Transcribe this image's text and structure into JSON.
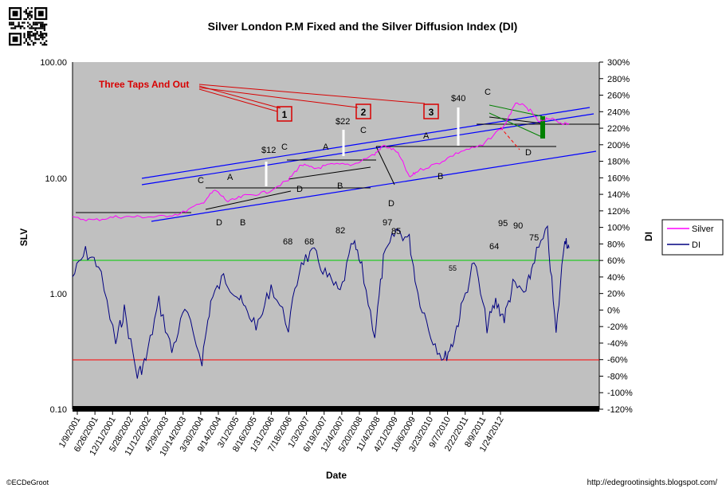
{
  "chart_data": {
    "type": "line",
    "title": "Silver London P.M Fixed and the Silver Diffusion Index (DI)",
    "xlabel": "Date",
    "ylabel_left": "SLV",
    "ylabel_right": "DI",
    "y_left_scale": "log",
    "ylim_left": [
      0.1,
      100
    ],
    "ylim_right": [
      -120,
      300
    ],
    "y_left_ticks": [
      "100.00",
      "10.00",
      "1.00",
      "0.10"
    ],
    "y_right_ticks": [
      "300%",
      "280%",
      "260%",
      "240%",
      "220%",
      "200%",
      "180%",
      "160%",
      "140%",
      "120%",
      "100%",
      "80%",
      "60%",
      "40%",
      "20%",
      "0%",
      "-20%",
      "-40%",
      "-60%",
      "-80%",
      "-100%",
      "-120%"
    ],
    "x_ticks": [
      "1/9/2001",
      "6/26/2001",
      "12/11/2001",
      "5/28/2002",
      "11/12/2002",
      "4/29/2003",
      "10/14/2003",
      "3/30/2004",
      "9/14/2004",
      "3/1/2005",
      "8/16/2005",
      "1/31/2006",
      "7/18/2006",
      "1/3/2007",
      "6/19/2007",
      "12/4/2007",
      "5/20/2008",
      "11/4/2008",
      "4/21/2009",
      "10/6/2009",
      "3/23/2010",
      "9/7/2010",
      "2/22/2011",
      "8/9/2011",
      "1/24/2012"
    ],
    "grid": false,
    "legend_position": "right",
    "series": [
      {
        "name": "Silver",
        "color": "#ff00ff",
        "axis": "left",
        "x": [
          2001.0,
          2001.5,
          2002.0,
          2002.5,
          2003.0,
          2003.5,
          2004.0,
          2004.3,
          2004.6,
          2005.0,
          2005.5,
          2006.0,
          2006.3,
          2006.6,
          2007.0,
          2007.5,
          2008.0,
          2008.2,
          2008.5,
          2008.8,
          2009.0,
          2009.5,
          2010.0,
          2010.5,
          2011.0,
          2011.3,
          2011.6,
          2011.8,
          2012.0,
          2012.3,
          2012.5
        ],
        "values": [
          4.5,
          4.3,
          4.6,
          4.6,
          4.6,
          4.9,
          6.0,
          7.8,
          6.2,
          7.0,
          7.5,
          9.5,
          13.0,
          12.0,
          13.0,
          13.0,
          16.0,
          19.0,
          17.0,
          10.0,
          11.5,
          13.5,
          17.0,
          19.0,
          28.0,
          45.0,
          38.0,
          30.0,
          33.0,
          30.0,
          29.0
        ]
      },
      {
        "name": "DI",
        "color": "#000080",
        "axis": "right",
        "x": [
          2001.0,
          2001.3,
          2001.6,
          2002.0,
          2002.2,
          2002.5,
          2002.7,
          2003.0,
          2003.3,
          2003.6,
          2004.0,
          2004.2,
          2004.5,
          2004.8,
          2005.0,
          2005.3,
          2005.6,
          2006.0,
          2006.3,
          2006.6,
          2006.9,
          2007.2,
          2007.5,
          2007.7,
          2008.0,
          2008.2,
          2008.5,
          2008.8,
          2009.0,
          2009.3,
          2009.6,
          2009.8,
          2010.0,
          2010.3,
          2010.6,
          2010.8,
          2011.0,
          2011.2,
          2011.5,
          2011.7,
          2012.0,
          2012.2,
          2012.4,
          2012.5
        ],
        "values": [
          40,
          70,
          55,
          -40,
          0,
          -80,
          -60,
          10,
          -50,
          0,
          -60,
          10,
          40,
          20,
          0,
          -20,
          30,
          -20,
          60,
          68,
          40,
          20,
          82,
          50,
          -30,
          60,
          97,
          85,
          20,
          -30,
          -60,
          -40,
          0,
          60,
          -20,
          10,
          -10,
          30,
          20,
          64,
          95,
          -30,
          90,
          75
        ]
      }
    ],
    "reference_lines": [
      {
        "axis": "right",
        "value": 60,
        "color": "#00cc00"
      },
      {
        "axis": "right",
        "value": -60,
        "color": "#ff0000"
      }
    ],
    "annotations": [
      {
        "text": "Three Taps And Out",
        "color": "#d80000"
      },
      {
        "text": "1"
      },
      {
        "text": "2"
      },
      {
        "text": "3"
      },
      {
        "text": "$12"
      },
      {
        "text": "$22"
      },
      {
        "text": "$40"
      },
      {
        "text": "C"
      },
      {
        "text": "C"
      },
      {
        "text": "C"
      },
      {
        "text": "C"
      },
      {
        "text": "A"
      },
      {
        "text": "A"
      },
      {
        "text": "A"
      },
      {
        "text": "D"
      },
      {
        "text": "D"
      },
      {
        "text": "D"
      },
      {
        "text": "D"
      },
      {
        "text": "B"
      },
      {
        "text": "B"
      },
      {
        "text": "B"
      },
      {
        "text": "68"
      },
      {
        "text": "68"
      },
      {
        "text": "82"
      },
      {
        "text": "97"
      },
      {
        "text": "85"
      },
      {
        "text": "55"
      },
      {
        "text": "64"
      },
      {
        "text": "95"
      },
      {
        "text": "90"
      },
      {
        "text": "75"
      }
    ]
  },
  "footer": {
    "left": "©ECDeGroot",
    "right": "http://edegrootinsights.blogspot.com/"
  },
  "colors": {
    "plot_background": "#c0c0c0",
    "silver_line": "#ff00ff",
    "di_line": "#000080",
    "trend_channel": "#0000ff",
    "annotation_red": "#d80000",
    "marker_green": "#008000"
  }
}
